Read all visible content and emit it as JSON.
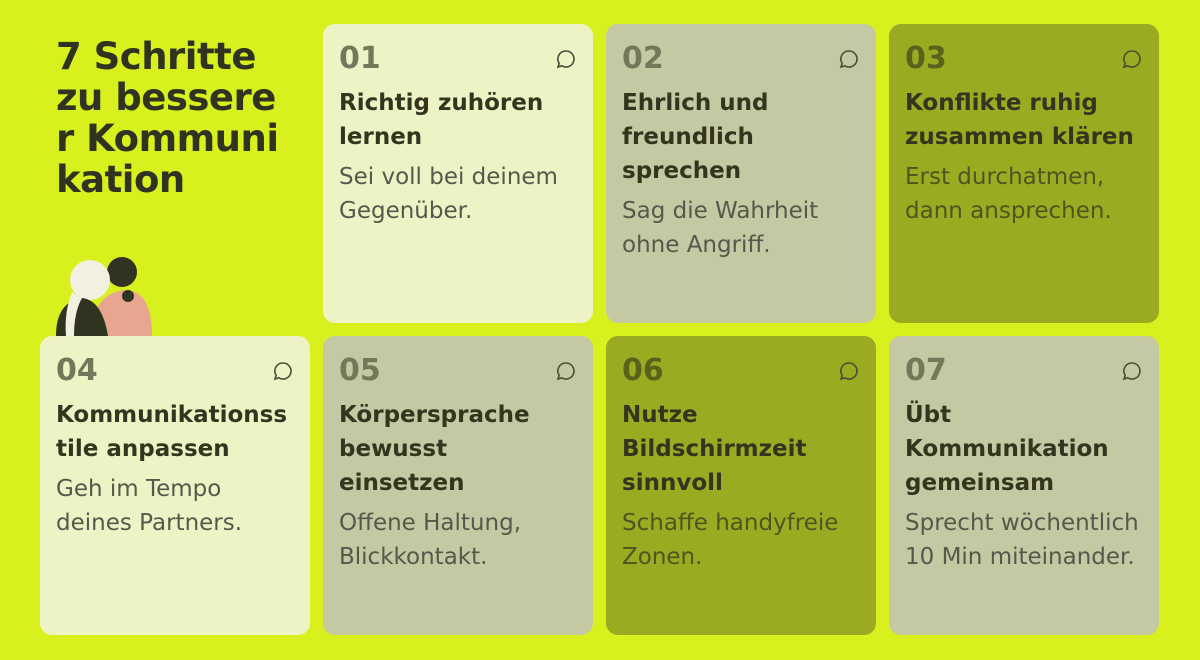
{
  "title": "7 Schritte zu besserer Kommunikation",
  "cards": [
    {
      "number": "01",
      "heading": "Richtig zuhören lernen",
      "text": "Sei voll bei deinem Gegenüber."
    },
    {
      "number": "02",
      "heading": "Ehrlich und freundlich sprechen",
      "text": "Sag die Wahrheit ohne Angriff."
    },
    {
      "number": "03",
      "heading": "Konflikte ruhig zusammen klären",
      "text": "Erst durchatmen, dann ansprechen."
    },
    {
      "number": "04",
      "heading": "Kommunikationsstile anpassen",
      "text": "Geh im Tempo deines Partners."
    },
    {
      "number": "05",
      "heading": "Körpersprache bewusst einsetzen",
      "text": "Offene Haltung, Blickkontakt."
    },
    {
      "number": "06",
      "heading": "Nutze Bildschirmzeit sinnvoll",
      "text": "Schaffe handyfreie Zonen."
    },
    {
      "number": "07",
      "heading": "Übt Kommunikation gemeinsam",
      "text": "Sprecht wöchentlich 10 Min miteinander."
    }
  ]
}
